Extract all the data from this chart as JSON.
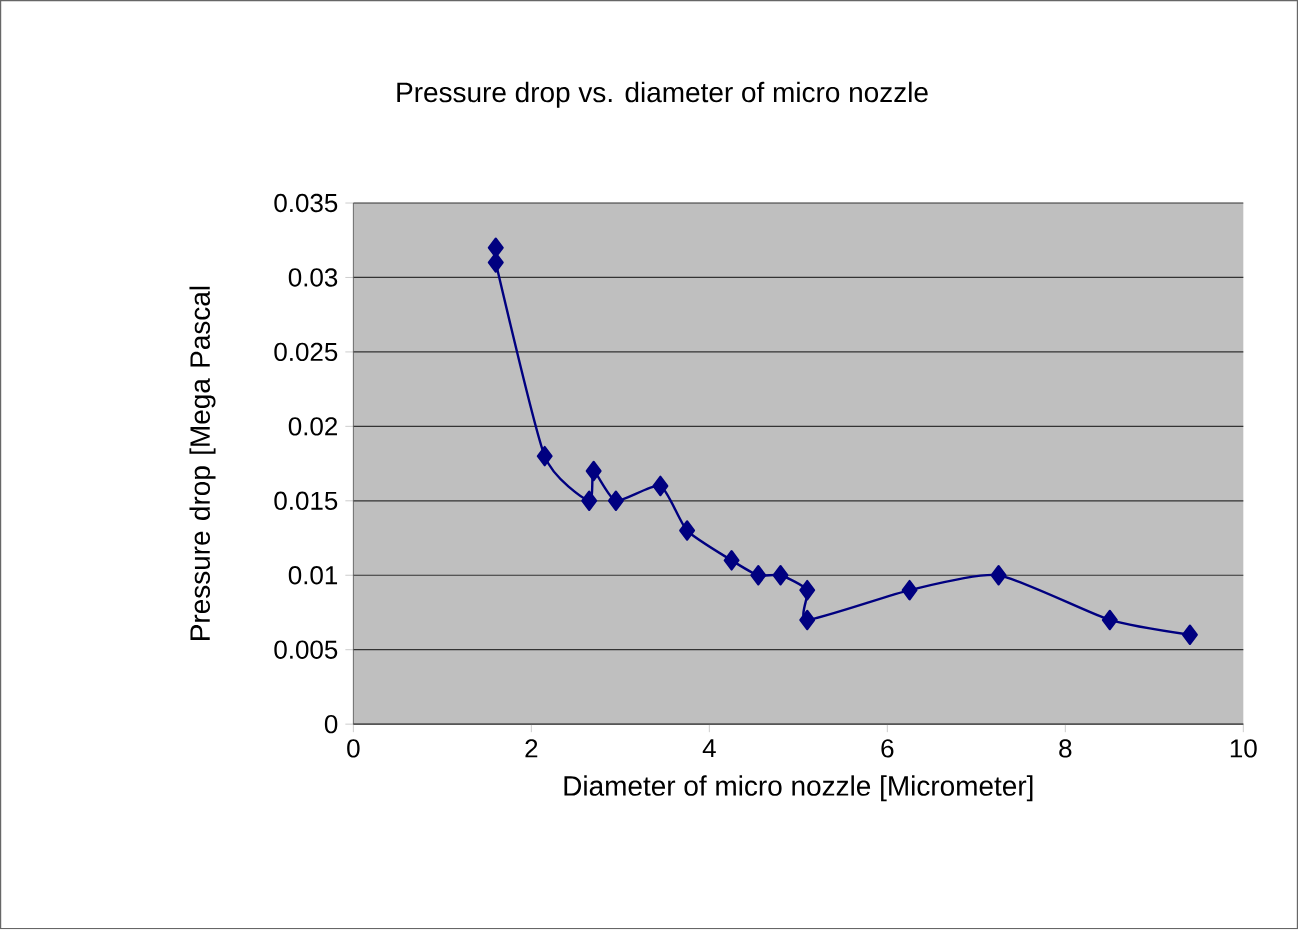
{
  "chart_data": {
    "type": "line",
    "title": "Pressure drop vs. diameter of micro nozzle",
    "xlabel": "Diameter of micro nozzle [Micrometer]",
    "ylabel": "Pressure drop [Mega Pascal",
    "series": [
      {
        "color": "#000080",
        "x": [
          1.6,
          1.6,
          2.15,
          2.65,
          2.7,
          2.95,
          3.45,
          3.75,
          4.25,
          4.55,
          4.8,
          5.1,
          5.1,
          6.25,
          7.25,
          8.5,
          9.4
        ],
        "values": [
          0.032,
          0.031,
          0.018,
          0.015,
          0.017,
          0.015,
          0.016,
          0.013,
          0.011,
          0.01,
          0.01,
          0.009,
          0.007,
          0.009,
          0.01,
          0.007,
          0.006
        ]
      }
    ],
    "xlim": [
      0,
      10
    ],
    "xticks": [
      0,
      2,
      4,
      6,
      8,
      10
    ],
    "ylim": [
      0,
      0.035
    ],
    "yticks": [
      0,
      0.005,
      0.01,
      0.015,
      0.02,
      0.025,
      0.03,
      0.035
    ],
    "grid": "y",
    "marker": "diamond",
    "line_style": "solid"
  }
}
